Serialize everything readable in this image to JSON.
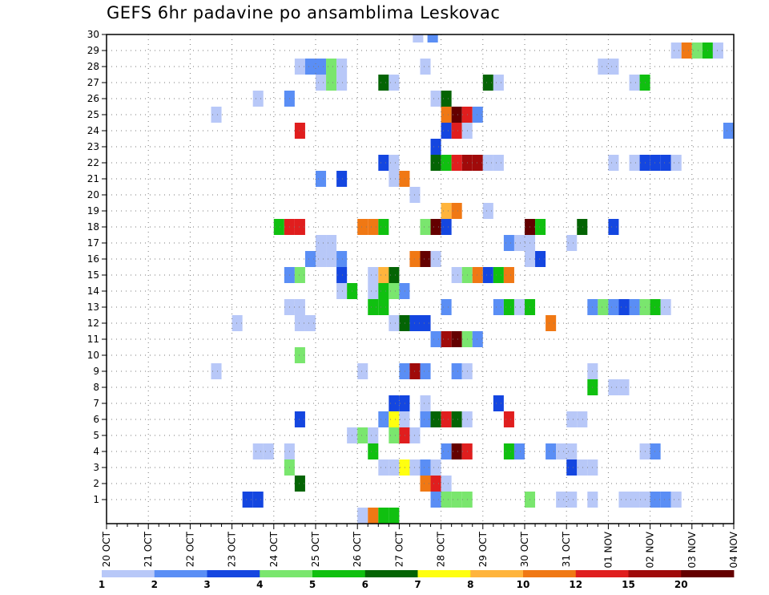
{
  "chart_data": {
    "type": "heatmap",
    "title": "GEFS 6hr padavine po ansamblima Leskovac",
    "xlabel": "",
    "ylabel": "",
    "x_tick_labels": [
      "20 OCT",
      "21 OCT",
      "22 OCT",
      "23 OCT",
      "24 OCT",
      "25 OCT",
      "26 OCT",
      "27 OCT",
      "28 OCT",
      "29 OCT",
      "30 OCT",
      "31 OCT",
      "01 NOV",
      "02 NOV",
      "03 NOV",
      "04 NOV"
    ],
    "xlim_steps": [
      0,
      60
    ],
    "y_tick_labels": [
      "1",
      "2",
      "3",
      "4",
      "5",
      "6",
      "7",
      "8",
      "9",
      "10",
      "11",
      "12",
      "13",
      "14",
      "15",
      "16",
      "17",
      "18",
      "19",
      "20",
      "21",
      "22",
      "23",
      "24",
      "25",
      "26",
      "27",
      "28",
      "29",
      "30"
    ],
    "ylim": [
      0,
      30
    ],
    "colorbar": {
      "tick_labels": [
        "1",
        "2",
        "3",
        "4",
        "5",
        "6",
        "7",
        "8",
        "10",
        "12",
        "15",
        "20"
      ],
      "colors": [
        "#b8c8f8",
        "#5a8ef5",
        "#1446e0",
        "#7ae66e",
        "#10c010",
        "#046404",
        "#ffff10",
        "#ffb43c",
        "#f07814",
        "#e01e1e",
        "#a00a0a",
        "#640000"
      ]
    },
    "cells": [
      [
        31.2,
        30,
        2
      ],
      [
        29.8,
        30,
        1
      ],
      [
        54.5,
        29,
        1
      ],
      [
        55.5,
        29,
        9
      ],
      [
        56.5,
        29,
        4
      ],
      [
        57.5,
        29,
        5
      ],
      [
        58.5,
        29,
        1
      ],
      [
        18.5,
        28,
        1
      ],
      [
        19.5,
        28,
        2
      ],
      [
        20.5,
        28,
        2
      ],
      [
        21.5,
        28,
        4
      ],
      [
        22.5,
        28,
        1
      ],
      [
        30.5,
        28,
        1
      ],
      [
        47.5,
        28,
        1
      ],
      [
        48.5,
        28,
        1
      ],
      [
        20.5,
        27,
        1
      ],
      [
        21.5,
        27,
        4
      ],
      [
        22.5,
        27,
        1
      ],
      [
        26.5,
        27,
        6
      ],
      [
        27.5,
        27,
        1
      ],
      [
        36.5,
        27,
        6
      ],
      [
        37.5,
        27,
        1
      ],
      [
        50.5,
        27,
        1
      ],
      [
        51.5,
        27,
        5
      ],
      [
        14.5,
        26,
        1
      ],
      [
        17.5,
        26,
        2
      ],
      [
        31.5,
        26,
        1
      ],
      [
        32.5,
        26,
        6
      ],
      [
        10.5,
        25,
        1
      ],
      [
        32.5,
        25,
        9
      ],
      [
        33.5,
        25,
        12
      ],
      [
        34.5,
        25,
        10
      ],
      [
        35.5,
        25,
        2
      ],
      [
        18.5,
        24,
        10
      ],
      [
        32.5,
        24,
        3
      ],
      [
        33.5,
        24,
        10
      ],
      [
        34.5,
        24,
        1
      ],
      [
        59.5,
        24,
        2
      ],
      [
        31.5,
        23,
        3
      ],
      [
        26.5,
        22,
        3
      ],
      [
        27.5,
        22,
        1
      ],
      [
        31.5,
        22,
        6
      ],
      [
        32.5,
        22,
        5
      ],
      [
        33.5,
        22,
        10
      ],
      [
        34.5,
        22,
        11
      ],
      [
        35.5,
        22,
        11
      ],
      [
        36.5,
        22,
        1
      ],
      [
        37.5,
        22,
        1
      ],
      [
        48.5,
        22,
        1
      ],
      [
        50.5,
        22,
        1
      ],
      [
        51.5,
        22,
        3
      ],
      [
        52.5,
        22,
        3
      ],
      [
        53.5,
        22,
        3
      ],
      [
        54.5,
        22,
        1
      ],
      [
        20.5,
        21,
        2
      ],
      [
        22.5,
        21,
        3
      ],
      [
        27.5,
        21,
        1
      ],
      [
        28.5,
        21,
        9
      ],
      [
        29.5,
        20,
        1
      ],
      [
        32.5,
        19,
        8
      ],
      [
        33.5,
        19,
        9
      ],
      [
        36.5,
        19,
        1
      ],
      [
        16.5,
        18,
        5
      ],
      [
        17.5,
        18,
        10
      ],
      [
        18.5,
        18,
        10
      ],
      [
        24.5,
        18,
        9
      ],
      [
        25.5,
        18,
        9
      ],
      [
        26.5,
        18,
        5
      ],
      [
        30.5,
        18,
        4
      ],
      [
        31.5,
        18,
        12
      ],
      [
        32.5,
        18,
        3
      ],
      [
        40.5,
        18,
        12
      ],
      [
        41.5,
        18,
        5
      ],
      [
        45.5,
        18,
        6
      ],
      [
        48.5,
        18,
        3
      ],
      [
        20.5,
        17,
        1
      ],
      [
        21.5,
        17,
        1
      ],
      [
        38.5,
        17,
        2
      ],
      [
        39.5,
        17,
        1
      ],
      [
        40.5,
        17,
        1
      ],
      [
        44.5,
        17,
        1
      ],
      [
        19.5,
        16,
        2
      ],
      [
        20.5,
        16,
        1
      ],
      [
        21.5,
        16,
        1
      ],
      [
        22.5,
        16,
        2
      ],
      [
        29.5,
        16,
        9
      ],
      [
        30.5,
        16,
        12
      ],
      [
        31.5,
        16,
        1
      ],
      [
        40.5,
        16,
        1
      ],
      [
        41.5,
        16,
        3
      ],
      [
        17.5,
        15,
        2
      ],
      [
        18.5,
        15,
        4
      ],
      [
        22.5,
        15,
        3
      ],
      [
        25.5,
        15,
        1
      ],
      [
        26.5,
        15,
        8
      ],
      [
        27.5,
        15,
        6
      ],
      [
        33.5,
        15,
        1
      ],
      [
        34.5,
        15,
        4
      ],
      [
        35.5,
        15,
        9
      ],
      [
        36.5,
        15,
        3
      ],
      [
        37.5,
        15,
        5
      ],
      [
        38.5,
        15,
        9
      ],
      [
        22.5,
        14,
        1
      ],
      [
        23.5,
        14,
        5
      ],
      [
        25.5,
        14,
        1
      ],
      [
        26.5,
        14,
        5
      ],
      [
        27.5,
        14,
        4
      ],
      [
        28.5,
        14,
        2
      ],
      [
        17.5,
        13,
        1
      ],
      [
        18.5,
        13,
        1
      ],
      [
        25.5,
        13,
        5
      ],
      [
        26.5,
        13,
        5
      ],
      [
        32.5,
        13,
        2
      ],
      [
        37.5,
        13,
        2
      ],
      [
        38.5,
        13,
        5
      ],
      [
        39.5,
        13,
        1
      ],
      [
        40.5,
        13,
        5
      ],
      [
        46.5,
        13,
        2
      ],
      [
        47.5,
        13,
        4
      ],
      [
        48.5,
        13,
        2
      ],
      [
        49.5,
        13,
        3
      ],
      [
        50.5,
        13,
        2
      ],
      [
        51.5,
        13,
        4
      ],
      [
        52.5,
        13,
        5
      ],
      [
        53.5,
        13,
        1
      ],
      [
        12.5,
        12,
        1
      ],
      [
        18.5,
        12,
        1
      ],
      [
        19.5,
        12,
        1
      ],
      [
        27.5,
        12,
        1
      ],
      [
        28.5,
        12,
        6
      ],
      [
        29.5,
        12,
        3
      ],
      [
        30.5,
        12,
        3
      ],
      [
        42.5,
        12,
        9
      ],
      [
        31.5,
        11,
        2
      ],
      [
        32.5,
        11,
        11
      ],
      [
        33.5,
        11,
        12
      ],
      [
        34.5,
        11,
        4
      ],
      [
        35.5,
        11,
        2
      ],
      [
        18.5,
        10,
        4
      ],
      [
        10.5,
        9,
        1
      ],
      [
        24.5,
        9,
        1
      ],
      [
        28.5,
        9,
        2
      ],
      [
        29.5,
        9,
        11
      ],
      [
        30.5,
        9,
        2
      ],
      [
        33.5,
        9,
        2
      ],
      [
        34.5,
        9,
        1
      ],
      [
        46.5,
        9,
        1
      ],
      [
        46.5,
        8,
        5
      ],
      [
        48.5,
        8,
        1
      ],
      [
        49.5,
        8,
        1
      ],
      [
        27.5,
        7,
        3
      ],
      [
        28.5,
        7,
        3
      ],
      [
        30.5,
        7,
        1
      ],
      [
        37.5,
        7,
        3
      ],
      [
        18.5,
        6,
        3
      ],
      [
        26.5,
        6,
        2
      ],
      [
        27.5,
        6,
        7
      ],
      [
        28.5,
        6,
        1
      ],
      [
        30.5,
        6,
        2
      ],
      [
        31.5,
        6,
        6
      ],
      [
        32.5,
        6,
        10
      ],
      [
        33.5,
        6,
        6
      ],
      [
        34.5,
        6,
        1
      ],
      [
        38.5,
        6,
        10
      ],
      [
        44.5,
        6,
        1
      ],
      [
        45.5,
        6,
        1
      ],
      [
        23.5,
        5,
        1
      ],
      [
        24.5,
        5,
        4
      ],
      [
        25.5,
        5,
        1
      ],
      [
        27.5,
        5,
        4
      ],
      [
        28.5,
        5,
        10
      ],
      [
        29.5,
        5,
        1
      ],
      [
        14.5,
        4,
        1
      ],
      [
        15.5,
        4,
        1
      ],
      [
        17.5,
        4,
        1
      ],
      [
        25.5,
        4,
        5
      ],
      [
        32.5,
        4,
        2
      ],
      [
        33.5,
        4,
        12
      ],
      [
        34.5,
        4,
        10
      ],
      [
        38.5,
        4,
        5
      ],
      [
        39.5,
        4,
        2
      ],
      [
        42.5,
        4,
        2
      ],
      [
        43.5,
        4,
        1
      ],
      [
        44.5,
        4,
        1
      ],
      [
        51.5,
        4,
        1
      ],
      [
        52.5,
        4,
        2
      ],
      [
        17.5,
        3,
        4
      ],
      [
        26.5,
        3,
        1
      ],
      [
        27.5,
        3,
        1
      ],
      [
        28.5,
        3,
        7
      ],
      [
        29.5,
        3,
        1
      ],
      [
        30.5,
        3,
        2
      ],
      [
        31.5,
        3,
        1
      ],
      [
        44.5,
        3,
        3
      ],
      [
        45.5,
        3,
        1
      ],
      [
        46.5,
        3,
        1
      ],
      [
        18.5,
        2,
        6
      ],
      [
        30.5,
        2,
        9
      ],
      [
        31.5,
        2,
        10
      ],
      [
        32.5,
        2,
        1
      ],
      [
        13.5,
        1,
        3
      ],
      [
        14.5,
        1,
        3
      ],
      [
        31.5,
        1,
        2
      ],
      [
        32.5,
        1,
        4
      ],
      [
        33.5,
        1,
        4
      ],
      [
        34.5,
        1,
        4
      ],
      [
        40.5,
        1,
        4
      ],
      [
        43.5,
        1,
        1
      ],
      [
        44.5,
        1,
        1
      ],
      [
        46.5,
        1,
        1
      ],
      [
        49.5,
        1,
        1
      ],
      [
        50.5,
        1,
        1
      ],
      [
        51.5,
        1,
        1
      ],
      [
        52.5,
        1,
        2
      ],
      [
        53.5,
        1,
        2
      ],
      [
        54.5,
        1,
        1
      ],
      [
        24.5,
        0,
        1
      ],
      [
        25.5,
        0,
        9
      ],
      [
        26.5,
        0,
        5
      ],
      [
        27.5,
        0,
        5
      ]
    ]
  }
}
